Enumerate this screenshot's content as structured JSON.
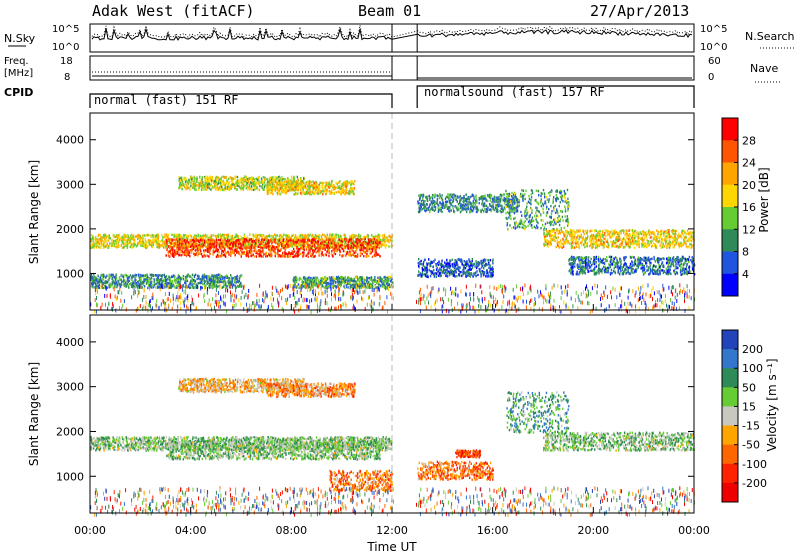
{
  "header": {
    "title": "Adak West (fitACF)",
    "beam": "Beam 01",
    "date": "27/Apr/2013"
  },
  "status": {
    "nsky_label": "N.Sky",
    "nsearch_label": "N.Search",
    "nave_label": "Nave",
    "freq_label_line1": "Freq.",
    "freq_label_line2": "[MHz]",
    "cpid_label": "CPID",
    "noise_ticks": [
      "10^5",
      "10^0"
    ],
    "noise_right_ticks": [
      "10^5",
      "10^0"
    ],
    "freq_ticks": [
      "18",
      "8"
    ],
    "nave_ticks": [
      "60",
      "0"
    ],
    "cpid_segments": [
      {
        "label": "normal (fast) 151 RF",
        "start_hour": 0,
        "end_hour": 12
      },
      {
        "label": "normalsound (fast) 157 RF",
        "start_hour": 13,
        "end_hour": 24
      }
    ]
  },
  "chart_data": [
    {
      "type": "heatmap",
      "panel": "power",
      "ylabel": "Slant Range [km]",
      "xlabel": "Time UT",
      "xlim": [
        0,
        24
      ],
      "ylim": [
        180,
        4600
      ],
      "yticks": [
        "1000",
        "2000",
        "3000",
        "4000"
      ],
      "xticks": [
        "00:00",
        "04:00",
        "08:00",
        "12:00",
        "16:00",
        "20:00",
        "00:00"
      ],
      "colorbar": {
        "label": "Power [dB]",
        "ticks": [
          "4",
          "8",
          "12",
          "16",
          "20",
          "24",
          "28"
        ],
        "colors": [
          "#0000ff",
          "#2255dd",
          "#2e8b57",
          "#66cc33",
          "#ffd700",
          "#ffa500",
          "#ff5500",
          "#ff0000"
        ]
      },
      "bands": [
        {
          "t0": 0.0,
          "t1": 12.0,
          "r0": 1600,
          "r1": 1900,
          "level": 0.55
        },
        {
          "t0": 3.0,
          "t1": 11.5,
          "r0": 1400,
          "r1": 1800,
          "level": 0.85
        },
        {
          "t0": 3.5,
          "t1": 8.5,
          "r0": 2900,
          "r1": 3200,
          "level": 0.5
        },
        {
          "t0": 7.0,
          "t1": 10.5,
          "r0": 2800,
          "r1": 3100,
          "level": 0.6
        },
        {
          "t0": 0.0,
          "t1": 6.0,
          "r0": 700,
          "r1": 1000,
          "level": 0.3
        },
        {
          "t0": 8.0,
          "t1": 12.0,
          "r0": 700,
          "r1": 950,
          "level": 0.35
        },
        {
          "t0": 13.0,
          "t1": 17.0,
          "r0": 2400,
          "r1": 2800,
          "level": 0.3
        },
        {
          "t0": 16.5,
          "t1": 19.0,
          "r0": 2000,
          "r1": 2900,
          "level": 0.35
        },
        {
          "t0": 18.0,
          "t1": 24.0,
          "r0": 1600,
          "r1": 2000,
          "level": 0.6
        },
        {
          "t0": 13.0,
          "t1": 16.0,
          "r0": 950,
          "r1": 1350,
          "level": 0.2
        },
        {
          "t0": 19.0,
          "t1": 24.0,
          "r0": 1000,
          "r1": 1400,
          "level": 0.25
        }
      ]
    },
    {
      "type": "heatmap",
      "panel": "velocity",
      "ylabel": "Slant Range [km]",
      "xlabel": "Time UT",
      "xlim": [
        0,
        24
      ],
      "ylim": [
        180,
        4600
      ],
      "yticks": [
        "1000",
        "2000",
        "3000",
        "4000"
      ],
      "xticks": [
        "00:00",
        "04:00",
        "08:00",
        "12:00",
        "16:00",
        "20:00",
        "00:00"
      ],
      "colorbar": {
        "label": "Velocity [m s⁻¹]",
        "ticks": [
          "200",
          "100",
          "50",
          "15",
          "-15",
          "-50",
          "-100",
          "-200"
        ],
        "colors": [
          "#2244bb",
          "#3377cc",
          "#2e8b57",
          "#66cc33",
          "#c8c8c0",
          "#ffa500",
          "#ff6600",
          "#ff2200",
          "#ee0000"
        ]
      },
      "bands": [
        {
          "t0": 0.0,
          "t1": 12.0,
          "r0": 1600,
          "r1": 1900,
          "level": 0.4
        },
        {
          "t0": 3.0,
          "t1": 11.5,
          "r0": 1400,
          "r1": 1800,
          "level": 0.4
        },
        {
          "t0": 3.5,
          "t1": 8.5,
          "r0": 2900,
          "r1": 3200,
          "level": 0.6
        },
        {
          "t0": 7.0,
          "t1": 10.5,
          "r0": 2800,
          "r1": 3100,
          "level": 0.65
        },
        {
          "t0": 9.5,
          "t1": 12.0,
          "r0": 700,
          "r1": 1150,
          "level": 0.7
        },
        {
          "t0": 13.0,
          "t1": 16.0,
          "r0": 950,
          "r1": 1350,
          "level": 0.7
        },
        {
          "t0": 14.5,
          "t1": 15.5,
          "r0": 1450,
          "r1": 1600,
          "level": 0.8
        },
        {
          "t0": 18.0,
          "t1": 24.0,
          "r0": 1600,
          "r1": 2000,
          "level": 0.4
        },
        {
          "t0": 16.5,
          "t1": 19.0,
          "r0": 2000,
          "r1": 2900,
          "level": 0.3
        }
      ]
    }
  ]
}
